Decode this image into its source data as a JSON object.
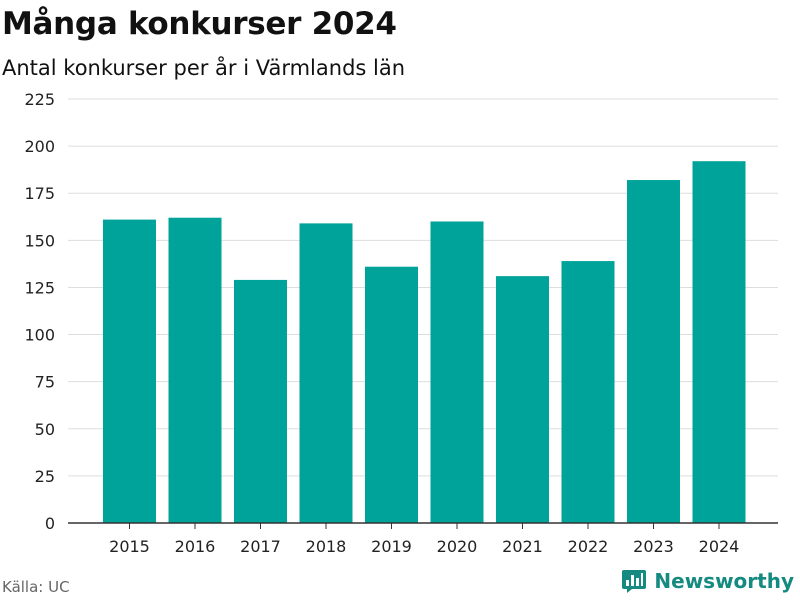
{
  "colors": {
    "bar": "#00a39a",
    "grid": "#dddddd",
    "axis": "#333333",
    "brand": "#148a80"
  },
  "footer": {
    "source": "Källa: UC",
    "brand_name": "Newsworthy",
    "brand_icon": "bar-chart-logo-icon"
  },
  "chart_data": {
    "type": "bar",
    "title": "Många konkurser 2024",
    "subtitle": "Antal konkurser per år i Värmlands län",
    "xlabel": "",
    "ylabel": "",
    "categories": [
      "2015",
      "2016",
      "2017",
      "2018",
      "2019",
      "2020",
      "2021",
      "2022",
      "2023",
      "2024"
    ],
    "values": [
      161,
      162,
      129,
      159,
      136,
      160,
      131,
      139,
      182,
      192
    ],
    "ylim": [
      0,
      225
    ],
    "yticks": [
      0,
      25,
      50,
      75,
      100,
      125,
      150,
      175,
      200,
      225
    ],
    "grid": true,
    "legend": "none"
  }
}
